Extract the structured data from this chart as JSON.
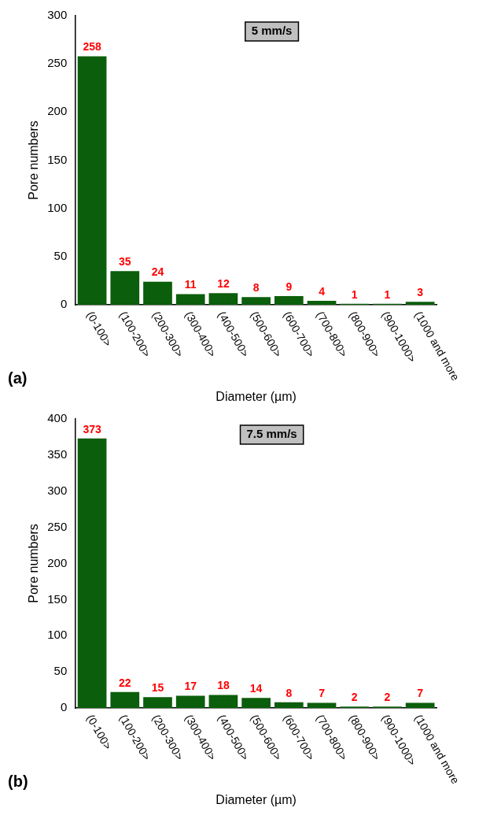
{
  "chart_data": [
    {
      "type": "bar",
      "title": "5 mm/s",
      "xlabel": "Diameter (µm)",
      "ylabel": "Pore numbers",
      "annotations": [
        "(a)"
      ],
      "categories": [
        "(0-100>",
        "(100-200>",
        "(200-300>",
        "(300-400>",
        "(400-500>",
        "(500-600>",
        "(600-700>",
        "(700-800>",
        "(800-900>",
        "(900-1000>",
        "(1000 and more"
      ],
      "values": [
        258,
        35,
        24,
        11,
        12,
        8,
        9,
        4,
        1,
        1,
        3
      ],
      "color": "#0b5e0b",
      "data_labels": true,
      "ylim": [
        0,
        300
      ],
      "yticks": [
        0,
        50,
        100,
        150,
        200,
        250,
        300
      ],
      "grid": false,
      "legend": false
    },
    {
      "type": "bar",
      "title": "7.5 mm/s",
      "xlabel": "Diameter (µm)",
      "ylabel": "Pore numbers",
      "annotations": [
        "(b)"
      ],
      "categories": [
        "(0-100>",
        "(100-200>",
        "(200-300>",
        "(300-400>",
        "(400-500>",
        "(500-600>",
        "(600-700>",
        "(700-800>",
        "(800-900>",
        "(900-1000>",
        "(1000 and more"
      ],
      "values": [
        373,
        22,
        15,
        17,
        18,
        14,
        8,
        7,
        2,
        2,
        7
      ],
      "color": "#0b5e0b",
      "data_labels": true,
      "ylim": [
        0,
        400
      ],
      "yticks": [
        0,
        50,
        100,
        150,
        200,
        250,
        300,
        350,
        400
      ],
      "grid": false,
      "legend": false
    }
  ]
}
